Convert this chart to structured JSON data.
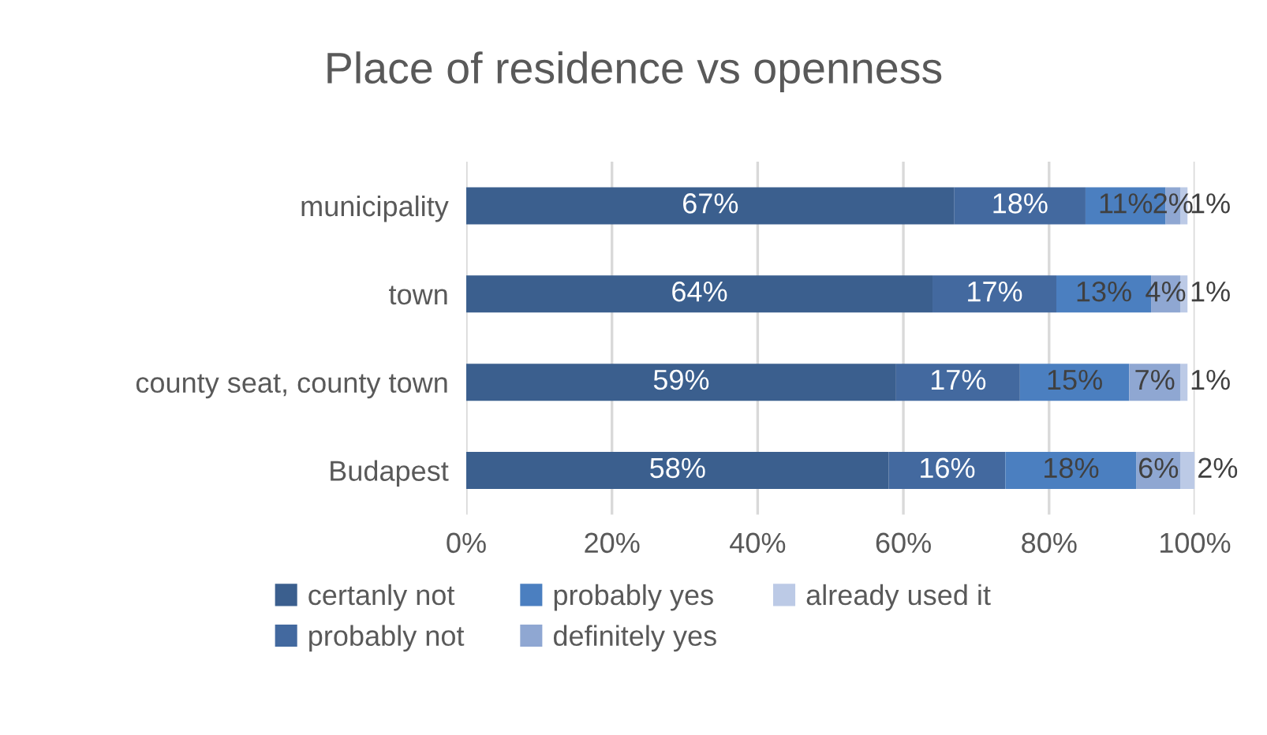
{
  "chart_data": {
    "type": "bar",
    "title": "Place of residence vs openness",
    "orientation": "horizontal",
    "stacked": true,
    "categories": [
      "municipality",
      "town",
      "county seat, county town",
      "Budapest"
    ],
    "series": [
      {
        "name": "certanly not",
        "color": "#3b5f8e",
        "values": [
          67,
          64,
          59,
          58
        ],
        "value_labels": [
          "67%",
          "64%",
          "59%",
          "58%"
        ]
      },
      {
        "name": "probably not",
        "color": "#43699f",
        "values": [
          18,
          17,
          17,
          16
        ],
        "value_labels": [
          "18%",
          "17%",
          "17%",
          "16%"
        ]
      },
      {
        "name": "probably yes",
        "color": "#4b7fc0",
        "values": [
          11,
          13,
          15,
          18
        ],
        "value_labels": [
          "11%",
          "13%",
          "15%",
          "18%"
        ]
      },
      {
        "name": "definitely yes",
        "color": "#8fa7d2",
        "values": [
          2,
          4,
          7,
          6
        ],
        "value_labels": [
          "2%",
          "4%",
          "7%",
          "6%"
        ]
      },
      {
        "name": "already used it",
        "color": "#bccae6",
        "values": [
          1,
          1,
          1,
          2
        ],
        "value_labels": [
          "1%",
          "1%",
          "1%",
          "2%"
        ]
      }
    ],
    "xlim": [
      0,
      100
    ],
    "xticks": [
      {
        "value": 0,
        "label": "0%"
      },
      {
        "value": 20,
        "label": "20%"
      },
      {
        "value": 40,
        "label": "40%"
      },
      {
        "value": 60,
        "label": "60%"
      },
      {
        "value": 80,
        "label": "80%"
      },
      {
        "value": 100,
        "label": "100%"
      }
    ],
    "grid": "x",
    "legend": "bottom"
  }
}
